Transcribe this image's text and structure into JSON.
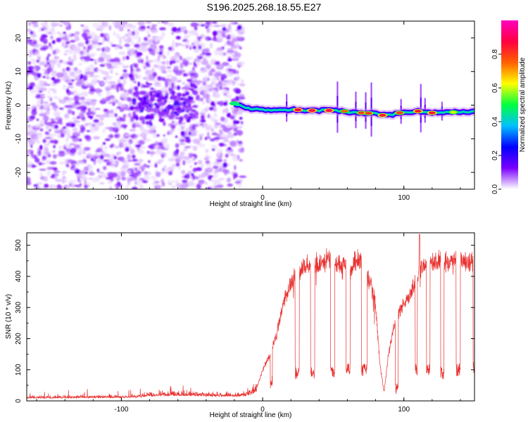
{
  "title": "S196.2025.268.18.55.E27",
  "chart_data": [
    {
      "type": "heatmap",
      "title": "S196.2025.268.18.55.E27",
      "xlabel": "Height of straight line (km)",
      "ylabel": "Frequency (Hz)",
      "xlim": [
        -167,
        150
      ],
      "ylim": [
        -25,
        25
      ],
      "xticks": [
        -100,
        0,
        100
      ],
      "yticks": [
        -20,
        -10,
        0,
        10,
        20
      ],
      "colorbar": {
        "label": "Normalized spectral amplitude",
        "range": [
          0,
          1
        ],
        "ticks": [
          0.0,
          0.2,
          0.4,
          0.6,
          0.8
        ],
        "colors": [
          "#ffffff",
          "#7a00ff",
          "#0000ff",
          "#00c0ff",
          "#00ff40",
          "#ffff00",
          "#ff6000",
          "#ff0040",
          "#ff00c0"
        ]
      },
      "noise_region": {
        "x_from": -167,
        "x_to": -14,
        "freq_from": -25,
        "freq_to": 25
      },
      "cluster_region": {
        "x_from": -92,
        "x_to": -47,
        "freq_from": -7,
        "freq_to": 7
      },
      "ridge": [
        {
          "x": -20,
          "f": 0.5
        },
        {
          "x": -10,
          "f": -1.0
        },
        {
          "x": 0,
          "f": -1.3
        },
        {
          "x": 10,
          "f": -1.5
        },
        {
          "x": 20,
          "f": -1.3
        },
        {
          "x": 30,
          "f": -1.6
        },
        {
          "x": 40,
          "f": -1.6
        },
        {
          "x": 50,
          "f": -1.5
        },
        {
          "x": 60,
          "f": -2.0
        },
        {
          "x": 70,
          "f": -2.3
        },
        {
          "x": 80,
          "f": -2.5
        },
        {
          "x": 90,
          "f": -3.0
        },
        {
          "x": 100,
          "f": -2.2
        },
        {
          "x": 110,
          "f": -1.8
        },
        {
          "x": 120,
          "f": -2.3
        },
        {
          "x": 130,
          "f": -2.1
        },
        {
          "x": 140,
          "f": -2.0
        },
        {
          "x": 150,
          "f": -2.0
        }
      ],
      "ridge_peaks": [
        {
          "x": -20,
          "f": 0.5,
          "amp": 0.45
        },
        {
          "x": 25,
          "f": -1.4,
          "amp": 0.9
        },
        {
          "x": 35,
          "f": -1.6,
          "amp": 0.9
        },
        {
          "x": 47,
          "f": -1.6,
          "amp": 0.9
        },
        {
          "x": 58,
          "f": -1.8,
          "amp": 0.75
        },
        {
          "x": 70,
          "f": -2.3,
          "amp": 0.8
        },
        {
          "x": 75,
          "f": -2.4,
          "amp": 0.8
        },
        {
          "x": 85,
          "f": -3.0,
          "amp": 0.85
        },
        {
          "x": 97,
          "f": -2.3,
          "amp": 0.8
        },
        {
          "x": 110,
          "f": -1.8,
          "amp": 0.85
        },
        {
          "x": 120,
          "f": -2.3,
          "amp": 0.85
        },
        {
          "x": 135,
          "f": -2.1,
          "amp": 0.6
        }
      ],
      "spikes": [
        {
          "x": 17,
          "len": 4.5
        },
        {
          "x": 53,
          "len": 8.5
        },
        {
          "x": 66,
          "len": 6
        },
        {
          "x": 73,
          "len": 6
        },
        {
          "x": 77,
          "len": 9
        },
        {
          "x": 98,
          "len": 4
        },
        {
          "x": 112,
          "len": 8
        },
        {
          "x": 115,
          "len": 4
        },
        {
          "x": 127,
          "len": 3
        }
      ]
    },
    {
      "type": "line",
      "xlabel": "Height of straight line (km)",
      "ylabel": "SNR (10 * v/v)",
      "xlim": [
        -167,
        150
      ],
      "ylim": [
        0,
        540
      ],
      "xticks": [
        -100,
        0,
        100
      ],
      "yticks": [
        0,
        100,
        200,
        300,
        400,
        500
      ],
      "color": "#e8312f",
      "series": {
        "name": "SNR",
        "baseline": [
          {
            "x": -167,
            "y": 12
          },
          {
            "x": -90,
            "y": 15
          },
          {
            "x": -80,
            "y": 22
          },
          {
            "x": -60,
            "y": 25
          },
          {
            "x": -40,
            "y": 22
          },
          {
            "x": -20,
            "y": 20
          },
          {
            "x": -10,
            "y": 25
          },
          {
            "x": -4,
            "y": 45
          },
          {
            "x": 0,
            "y": 100
          },
          {
            "x": 5,
            "y": 150
          },
          {
            "x": 10,
            "y": 220
          },
          {
            "x": 15,
            "y": 330
          },
          {
            "x": 20,
            "y": 380
          },
          {
            "x": 25,
            "y": 420
          },
          {
            "x": 30,
            "y": 440
          },
          {
            "x": 40,
            "y": 450
          },
          {
            "x": 45,
            "y": 460
          },
          {
            "x": 55,
            "y": 445
          },
          {
            "x": 60,
            "y": 445
          },
          {
            "x": 62,
            "y": 420
          },
          {
            "x": 65,
            "y": 460
          },
          {
            "x": 70,
            "y": 460
          },
          {
            "x": 75,
            "y": 400
          },
          {
            "x": 80,
            "y": 320
          },
          {
            "x": 83,
            "y": 120
          },
          {
            "x": 86,
            "y": 30
          },
          {
            "x": 89,
            "y": 150
          },
          {
            "x": 92,
            "y": 220
          },
          {
            "x": 95,
            "y": 280
          },
          {
            "x": 100,
            "y": 320
          },
          {
            "x": 105,
            "y": 350
          },
          {
            "x": 108,
            "y": 390
          },
          {
            "x": 112,
            "y": 440
          },
          {
            "x": 120,
            "y": 455
          },
          {
            "x": 130,
            "y": 455
          },
          {
            "x": 140,
            "y": 460
          },
          {
            "x": 150,
            "y": 450
          }
        ],
        "dips": [
          {
            "x0": 5.5,
            "x1": 7,
            "y": 60
          },
          {
            "x0": 23,
            "x1": 26,
            "y": 90
          },
          {
            "x0": 34,
            "x1": 37,
            "y": 90
          },
          {
            "x0": 48,
            "x1": 51,
            "y": 90
          },
          {
            "x0": 59,
            "x1": 62,
            "y": 100
          },
          {
            "x0": 70,
            "x1": 74,
            "y": 100
          },
          {
            "x0": 94,
            "x1": 96,
            "y": 40
          },
          {
            "x0": 108,
            "x1": 109.5,
            "y": 100
          },
          {
            "x0": 116,
            "x1": 118.5,
            "y": 100
          },
          {
            "x0": 126,
            "x1": 128.5,
            "y": 90
          },
          {
            "x0": 137,
            "x1": 140,
            "y": 100
          },
          {
            "x0": 149,
            "x1": 150,
            "y": 110
          }
        ],
        "peaks": [
          {
            "x": 111,
            "y": 535
          }
        ]
      }
    }
  ]
}
